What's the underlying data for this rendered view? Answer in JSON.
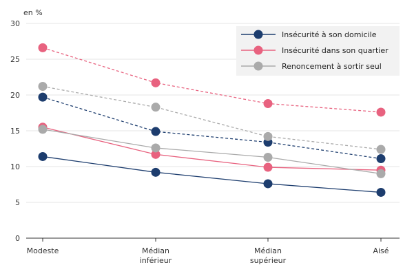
{
  "chart_data": {
    "type": "line",
    "y_unit_label": "en %",
    "categories": [
      [
        "Modeste"
      ],
      [
        "Médian",
        "inférieur"
      ],
      [
        "Médian",
        "supérieur"
      ],
      [
        "Aisé"
      ]
    ],
    "ylim": [
      0,
      30
    ],
    "yticks": [
      0,
      5,
      10,
      15,
      20,
      25,
      30
    ],
    "grid": true,
    "legend_position": "top-right",
    "series": [
      {
        "name": "Insécurité à son domicile",
        "color": "#1d3d6e",
        "values": [
          11.4,
          9.2,
          7.6,
          6.4
        ],
        "dashed": false,
        "in_legend": true
      },
      {
        "name": "Insécurité dans son quartier",
        "color": "#e8627f",
        "values": [
          15.5,
          11.7,
          9.9,
          9.5
        ],
        "dashed": false,
        "in_legend": true
      },
      {
        "name": "Renoncement à sortir seul",
        "color": "#aaaaaa",
        "values": [
          15.2,
          12.6,
          11.3,
          9.0
        ],
        "dashed": false,
        "in_legend": true
      },
      {
        "color": "#1d3d6e",
        "values": [
          19.7,
          14.9,
          13.4,
          11.1
        ],
        "dashed": true,
        "in_legend": false
      },
      {
        "color": "#e8627f",
        "values": [
          26.6,
          21.7,
          18.8,
          17.6
        ],
        "dashed": true,
        "in_legend": false
      },
      {
        "color": "#aaaaaa",
        "values": [
          21.2,
          18.3,
          14.2,
          12.4
        ],
        "dashed": true,
        "in_legend": false
      }
    ]
  }
}
